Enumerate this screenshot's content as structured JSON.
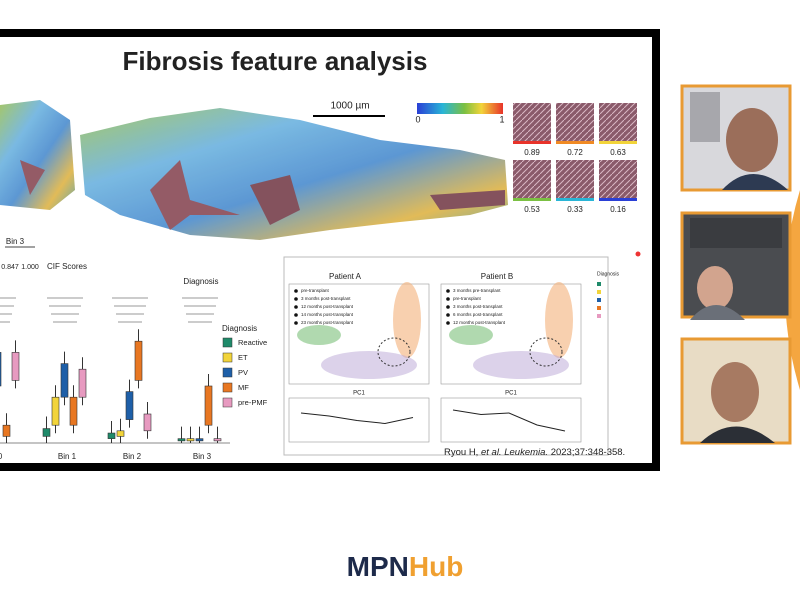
{
  "slide": {
    "title": "Fibrosis feature analysis",
    "scale_bar": "1000 µm",
    "colorbar": {
      "min": 0,
      "max": 1
    },
    "tiles": [
      {
        "score": 0.89,
        "color": "#e8332a"
      },
      {
        "score": 0.72,
        "color": "#f08a24"
      },
      {
        "score": 0.63,
        "color": "#f2d43a"
      },
      {
        "score": 0.53,
        "color": "#7bc043"
      },
      {
        "score": 0.33,
        "color": "#29b5d6"
      },
      {
        "score": 0.16,
        "color": "#2a3fd6"
      }
    ],
    "left_panel": {
      "bin_label": "Bin 3",
      "scale_min": "0.847",
      "scale_max": "1.000",
      "y_title": "CIF Scores",
      "panel_title": "Diagnosis",
      "legend": {
        "title": "Diagnosis",
        "items": [
          {
            "label": "Reactive",
            "color": "#1f8a6a"
          },
          {
            "label": "ET",
            "color": "#f2d43a"
          },
          {
            "label": "PV",
            "color": "#1e5fa8"
          },
          {
            "label": "MF",
            "color": "#e87722"
          },
          {
            "label": "pre-PMF",
            "color": "#e79ac0"
          }
        ]
      },
      "x_labels": [
        "0",
        "Bin 1",
        "Bin 2",
        "Bin 3"
      ]
    },
    "patients": [
      {
        "title": "Patient A",
        "x_label": "PC1",
        "legend": [
          "pre-transplant",
          "3 months post-transplant",
          "12 months post-transplant",
          "14 months post-transplant",
          "23 months post-transplant"
        ]
      },
      {
        "title": "Patient B",
        "x_label": "PC1",
        "legend": [
          "3 months pre-transplant",
          "pre-transplant",
          "3 months post-transplant",
          "6 months post-transplant",
          "12 months post-transplant"
        ]
      }
    ],
    "citation": {
      "authors": "Ryou H,",
      "etal": "et al.",
      "journal": "Leukemia.",
      "ref": "2023;37:348-358."
    }
  },
  "logo": {
    "left": "MPN",
    "right": "Hub"
  }
}
